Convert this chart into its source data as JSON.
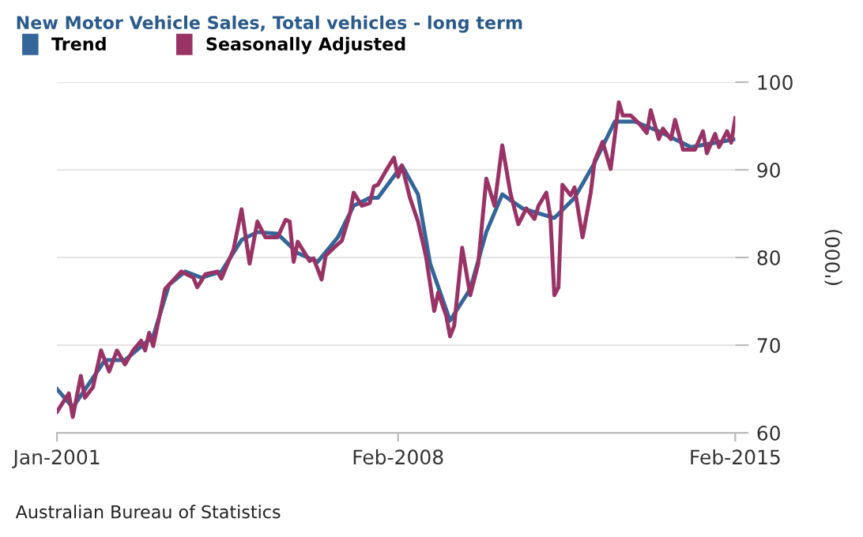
{
  "chart_data": {
    "type": "line",
    "title": "New Motor Vehicle Sales, Total vehicles - long term",
    "ylabel": "('000)",
    "annotations": [
      "Australian Bureau of Statistics"
    ],
    "xlim": [
      "2001-01",
      "2015-02"
    ],
    "xticks": [
      {
        "value": "2001-01",
        "label": "Jan-2001"
      },
      {
        "value": "2008-02",
        "label": "Feb-2008"
      },
      {
        "value": "2015-02",
        "label": "Feb-2015"
      }
    ],
    "ylim": [
      60,
      100
    ],
    "yticks": [
      60,
      70,
      80,
      90,
      100
    ],
    "grid": "y",
    "legend": "top left",
    "marker": "none",
    "line_style": "solid",
    "series": [
      {
        "name": "Trend",
        "color": "#336699",
        "x": [
          "2001-01",
          "2001-05",
          "2002-01",
          "2002-06",
          "2003-01",
          "2003-05",
          "2003-09",
          "2004-01",
          "2004-06",
          "2004-11",
          "2005-03",
          "2005-08",
          "2006-01",
          "2006-06",
          "2006-11",
          "2007-03",
          "2007-07",
          "2007-09",
          "2008-03",
          "2008-07",
          "2008-10",
          "2009-03",
          "2009-08",
          "2009-12",
          "2010-04",
          "2010-09",
          "2011-05",
          "2011-10",
          "2012-03",
          "2012-08",
          "2013-01",
          "2013-07",
          "2014-03",
          "2015-02"
        ],
        "values": [
          65.0,
          62.9,
          68.3,
          68.3,
          71.0,
          76.9,
          78.4,
          77.7,
          78.4,
          82.0,
          82.9,
          82.7,
          80.5,
          79.5,
          82.3,
          85.9,
          86.8,
          86.8,
          90.5,
          87.2,
          79.3,
          72.8,
          76.4,
          82.9,
          87.2,
          85.6,
          84.5,
          86.8,
          90.8,
          95.5,
          95.5,
          94.4,
          92.6,
          93.5
        ]
      },
      {
        "name": "Seasonally Adjusted",
        "color": "#993366",
        "x": [
          "2001-01",
          "2001-04",
          "2001-05",
          "2001-07",
          "2001-08",
          "2001-10",
          "2001-12",
          "2002-02",
          "2002-04",
          "2002-06",
          "2002-08",
          "2002-10",
          "2002-11",
          "2002-12",
          "2003-01",
          "2003-04",
          "2003-08",
          "2003-11",
          "2003-12",
          "2004-02",
          "2004-05",
          "2004-06",
          "2004-09",
          "2004-11",
          "2005-01",
          "2005-03",
          "2005-05",
          "2005-08",
          "2005-10",
          "2005-11",
          "2005-12",
          "2006-01",
          "2006-04",
          "2006-05",
          "2006-07",
          "2006-08",
          "2006-10",
          "2006-12",
          "2007-02",
          "2007-03",
          "2007-05",
          "2007-07",
          "2007-08",
          "2007-09",
          "2007-11",
          "2008-01",
          "2008-02",
          "2008-03",
          "2008-05",
          "2008-07",
          "2008-09",
          "2008-11",
          "2008-12",
          "2009-02",
          "2009-03",
          "2009-04",
          "2009-06",
          "2009-08",
          "2009-10",
          "2009-12",
          "2010-02",
          "2010-04",
          "2010-06",
          "2010-08",
          "2010-10",
          "2010-12",
          "2011-01",
          "2011-03",
          "2011-04",
          "2011-05",
          "2011-06",
          "2011-07",
          "2011-09",
          "2011-10",
          "2011-12",
          "2012-02",
          "2012-03",
          "2012-05",
          "2012-07",
          "2012-08",
          "2012-09",
          "2012-10",
          "2012-12",
          "2013-02",
          "2013-04",
          "2013-05",
          "2013-07",
          "2013-08",
          "2013-10",
          "2013-11",
          "2014-01",
          "2014-04",
          "2014-06",
          "2014-07",
          "2014-09",
          "2014-10",
          "2014-12",
          "2015-01",
          "2015-02"
        ],
        "values": [
          62.4,
          64.5,
          61.8,
          66.5,
          64.0,
          65.2,
          69.4,
          67.0,
          69.4,
          67.8,
          69.4,
          70.5,
          69.4,
          71.4,
          69.9,
          76.4,
          78.4,
          77.7,
          76.6,
          78.1,
          78.4,
          77.6,
          80.9,
          85.5,
          79.3,
          84.1,
          82.3,
          82.3,
          84.3,
          84.1,
          79.5,
          81.8,
          79.6,
          79.9,
          77.5,
          80.2,
          81.1,
          81.9,
          85.0,
          87.4,
          85.9,
          86.2,
          88.1,
          88.3,
          89.9,
          91.4,
          89.2,
          90.5,
          86.8,
          84.1,
          80.0,
          73.9,
          76.0,
          73.3,
          71.0,
          72.2,
          81.1,
          75.7,
          79.3,
          89.0,
          85.9,
          92.8,
          87.4,
          83.8,
          85.6,
          84.4,
          85.9,
          87.4,
          84.6,
          75.7,
          76.6,
          88.3,
          87.1,
          88.0,
          82.3,
          87.4,
          91.0,
          93.2,
          90.1,
          93.8,
          97.7,
          96.2,
          96.2,
          95.3,
          94.2,
          96.8,
          93.5,
          94.7,
          93.5,
          95.7,
          92.3,
          92.3,
          94.4,
          91.9,
          94.1,
          92.6,
          94.4,
          93.1,
          95.9
        ]
      }
    ]
  }
}
